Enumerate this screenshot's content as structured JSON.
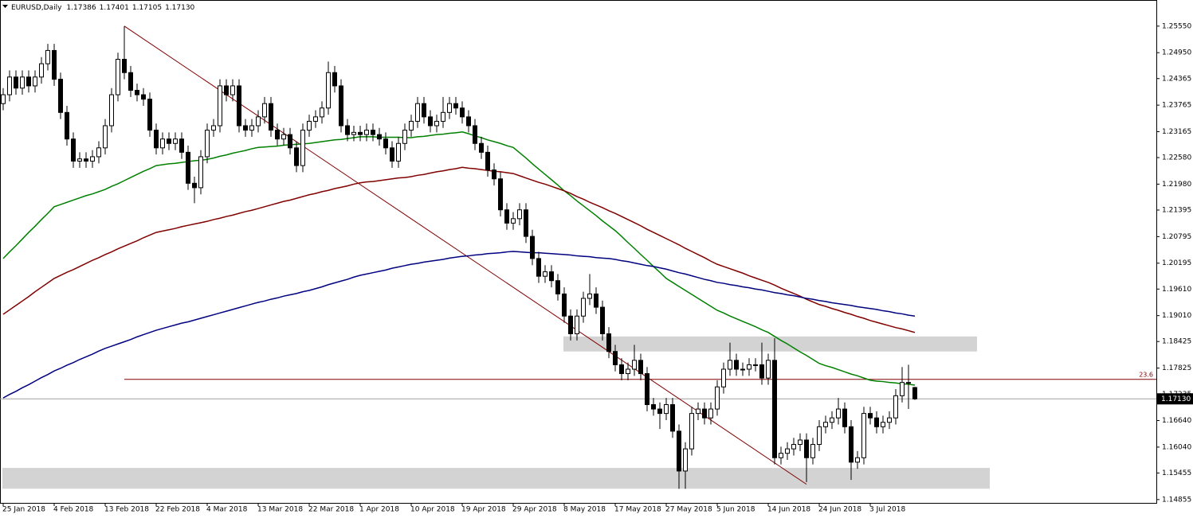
{
  "chart_data": {
    "type": "candlestick",
    "title": "EURUSD,Daily",
    "close_label": "1.17130",
    "categories": [
      "25 Jan 2018",
      null,
      null,
      null,
      null,
      null,
      null,
      null,
      "4 Feb 2018",
      null,
      null,
      null,
      null,
      null,
      null,
      null,
      "13 Feb 2018",
      null,
      null,
      null,
      null,
      null,
      null,
      null,
      "22 Feb 2018",
      null,
      null,
      null,
      null,
      null,
      null,
      null,
      "4 Mar 2018",
      null,
      null,
      null,
      null,
      null,
      null,
      null,
      "13 Mar 2018",
      null,
      null,
      null,
      null,
      null,
      null,
      null,
      "22 Mar 2018",
      null,
      null,
      null,
      null,
      null,
      null,
      null,
      "1 Apr 2018",
      null,
      null,
      null,
      null,
      null,
      null,
      null,
      "10 Apr 2018",
      null,
      null,
      null,
      null,
      null,
      null,
      null,
      "19 Apr 2018",
      null,
      null,
      null,
      null,
      null,
      null,
      null,
      "29 Apr 2018",
      null,
      null,
      null,
      null,
      null,
      null,
      null,
      "8 May 2018",
      null,
      null,
      null,
      null,
      null,
      null,
      null,
      "17 May 2018",
      null,
      null,
      null,
      null,
      null,
      null,
      null,
      "27 May 2018",
      null,
      null,
      null,
      null,
      null,
      null,
      null,
      "5 Jun 2018",
      null,
      null,
      null,
      null,
      null,
      null,
      null,
      "14 Jun 2018",
      null,
      null,
      null,
      null,
      null,
      null,
      null,
      "24 Jun 2018",
      null,
      null,
      null,
      null,
      null,
      null,
      null,
      "3 Jul 2018",
      null,
      null,
      null,
      null,
      null,
      null,
      null
    ],
    "open": [
      1.238,
      1.24,
      1.244,
      1.2415,
      1.244,
      1.242,
      1.244,
      1.247,
      1.25,
      1.2435,
      1.236,
      1.23,
      1.225,
      1.2255,
      1.225,
      1.226,
      1.228,
      1.233,
      1.24,
      1.248,
      1.245,
      1.241,
      1.24,
      1.239,
      1.232,
      1.228,
      1.23,
      1.229,
      1.23,
      1.227,
      1.22,
      1.219,
      1.226,
      1.232,
      1.233,
      1.242,
      1.24,
      1.242,
      1.233,
      1.232,
      1.233,
      1.235,
      1.238,
      1.232,
      1.23,
      1.231,
      1.228,
      1.224,
      1.232,
      1.234,
      1.235,
      1.237,
      1.245,
      1.242,
      1.233,
      1.231,
      1.2315,
      1.231,
      1.232,
      1.231,
      1.23,
      1.228,
      1.225,
      1.229,
      1.232,
      1.234,
      1.238,
      1.235,
      1.233,
      1.234,
      1.236,
      1.238,
      1.237,
      1.235,
      1.233,
      1.229,
      1.227,
      1.223,
      1.221,
      1.214,
      1.211,
      1.212,
      1.214,
      1.208,
      1.203,
      1.199,
      1.2,
      1.198,
      1.195,
      1.19,
      1.186,
      1.19,
      1.194,
      1.195,
      1.192,
      1.186,
      1.182,
      1.179,
      1.177,
      1.178,
      1.18,
      1.177,
      1.17,
      1.169,
      1.168,
      1.17,
      1.164,
      1.155,
      1.16,
      1.168,
      1.169,
      1.167,
      1.169,
      1.174,
      1.178,
      1.18,
      1.178,
      1.178,
      1.179,
      1.179,
      1.176,
      1.18,
      1.158,
      1.159,
      1.16,
      1.161,
      1.162,
      1.158,
      1.161,
      1.165,
      1.166,
      1.167,
      1.169,
      1.165,
      1.157,
      1.158,
      1.168,
      1.167,
      1.165,
      1.166,
      1.167,
      1.172,
      1.175,
      1.17386
    ],
    "high": [
      1.2415,
      1.2455,
      1.2455,
      1.2455,
      1.2455,
      1.2455,
      1.2485,
      1.2515,
      1.2515,
      1.245,
      1.2375,
      1.2315,
      1.227,
      1.227,
      1.2275,
      1.2295,
      1.2345,
      1.2415,
      1.2495,
      1.2555,
      1.2465,
      1.2425,
      1.2415,
      1.2405,
      1.2335,
      1.2315,
      1.2315,
      1.2315,
      1.2315,
      1.2285,
      1.2215,
      1.2275,
      1.2335,
      1.2345,
      1.2435,
      1.2435,
      1.2435,
      1.2435,
      1.2345,
      1.2345,
      1.2365,
      1.2395,
      1.2395,
      1.2335,
      1.2325,
      1.2325,
      1.2295,
      1.2335,
      1.2355,
      1.2365,
      1.2385,
      1.2475,
      1.2465,
      1.2435,
      1.2345,
      1.233,
      1.233,
      1.2335,
      1.2335,
      1.2325,
      1.2315,
      1.2295,
      1.2305,
      1.2335,
      1.2355,
      1.2395,
      1.2395,
      1.2365,
      1.2355,
      1.2395,
      1.2395,
      1.2395,
      1.2385,
      1.2365,
      1.2345,
      1.2305,
      1.2285,
      1.2245,
      1.2225,
      1.2155,
      1.2135,
      1.2155,
      1.2155,
      1.2095,
      1.2045,
      1.2015,
      1.2015,
      1.1995,
      1.1965,
      1.1915,
      1.1915,
      1.1955,
      1.1995,
      1.1965,
      1.1935,
      1.1875,
      1.1835,
      1.1805,
      1.1795,
      1.1835,
      1.1815,
      1.1785,
      1.1715,
      1.1705,
      1.1715,
      1.1715,
      1.1655,
      1.1615,
      1.1695,
      1.1705,
      1.1705,
      1.1705,
      1.1755,
      1.1795,
      1.184,
      1.1815,
      1.1795,
      1.1805,
      1.1805,
      1.184,
      1.1815,
      1.185,
      1.1605,
      1.1615,
      1.1625,
      1.1635,
      1.1635,
      1.1625,
      1.1665,
      1.1675,
      1.1685,
      1.1715,
      1.1705,
      1.1665,
      1.1595,
      1.1695,
      1.1695,
      1.1685,
      1.1675,
      1.1685,
      1.1735,
      1.1785,
      1.179,
      1.17401
    ],
    "low": [
      1.2365,
      1.2385,
      1.24,
      1.24,
      1.2405,
      1.2405,
      1.2425,
      1.2455,
      1.242,
      1.2345,
      1.2285,
      1.2235,
      1.2235,
      1.2235,
      1.2235,
      1.2245,
      1.2265,
      1.2315,
      1.2385,
      1.2435,
      1.2395,
      1.2385,
      1.2375,
      1.2305,
      1.2265,
      1.2265,
      1.2275,
      1.2275,
      1.2255,
      1.2185,
      1.2155,
      1.2175,
      1.2245,
      1.2305,
      1.2315,
      1.2385,
      1.2385,
      1.2315,
      1.2305,
      1.2305,
      1.2315,
      1.2335,
      1.2305,
      1.2285,
      1.2285,
      1.2265,
      1.2225,
      1.2225,
      1.2305,
      1.2325,
      1.2335,
      1.2355,
      1.2405,
      1.2315,
      1.2295,
      1.2295,
      1.2295,
      1.2295,
      1.2295,
      1.2285,
      1.2265,
      1.2235,
      1.2235,
      1.2275,
      1.2305,
      1.2325,
      1.2335,
      1.2315,
      1.2315,
      1.2325,
      1.2345,
      1.2355,
      1.2335,
      1.2315,
      1.2275,
      1.2255,
      1.2215,
      1.2195,
      1.2125,
      1.2095,
      1.2095,
      1.2105,
      1.2065,
      1.2015,
      1.1975,
      1.1975,
      1.1965,
      1.1935,
      1.1885,
      1.1845,
      1.1845,
      1.1885,
      1.1925,
      1.1905,
      1.1845,
      1.1805,
      1.1775,
      1.1755,
      1.1755,
      1.1765,
      1.1755,
      1.1685,
      1.1675,
      1.1645,
      1.1665,
      1.1625,
      1.151,
      1.151,
      1.1585,
      1.1665,
      1.1655,
      1.1655,
      1.1675,
      1.1725,
      1.1765,
      1.1765,
      1.1765,
      1.1765,
      1.1775,
      1.1745,
      1.1745,
      1.1565,
      1.1565,
      1.1575,
      1.1585,
      1.1595,
      1.1525,
      1.1565,
      1.1595,
      1.1635,
      1.1645,
      1.1655,
      1.1635,
      1.153,
      1.1555,
      1.1565,
      1.1655,
      1.1635,
      1.1635,
      1.1645,
      1.1655,
      1.1705,
      1.169,
      1.17105
    ],
    "close": [
      1.24,
      1.244,
      1.2415,
      1.244,
      1.242,
      1.244,
      1.247,
      1.25,
      1.2435,
      1.236,
      1.23,
      1.225,
      1.2255,
      1.225,
      1.226,
      1.228,
      1.233,
      1.24,
      1.248,
      1.245,
      1.241,
      1.24,
      1.239,
      1.232,
      1.228,
      1.23,
      1.229,
      1.23,
      1.227,
      1.22,
      1.219,
      1.226,
      1.232,
      1.233,
      1.242,
      1.24,
      1.242,
      1.233,
      1.232,
      1.233,
      1.235,
      1.238,
      1.232,
      1.23,
      1.231,
      1.228,
      1.224,
      1.232,
      1.234,
      1.235,
      1.237,
      1.245,
      1.242,
      1.233,
      1.231,
      1.2315,
      1.231,
      1.232,
      1.231,
      1.23,
      1.228,
      1.225,
      1.229,
      1.232,
      1.234,
      1.238,
      1.235,
      1.233,
      1.234,
      1.236,
      1.238,
      1.237,
      1.235,
      1.233,
      1.229,
      1.227,
      1.223,
      1.221,
      1.214,
      1.211,
      1.212,
      1.214,
      1.208,
      1.203,
      1.199,
      1.2,
      1.198,
      1.195,
      1.19,
      1.186,
      1.19,
      1.194,
      1.195,
      1.192,
      1.186,
      1.182,
      1.179,
      1.177,
      1.178,
      1.18,
      1.177,
      1.17,
      1.169,
      1.168,
      1.17,
      1.164,
      1.155,
      1.16,
      1.168,
      1.169,
      1.167,
      1.169,
      1.174,
      1.178,
      1.18,
      1.178,
      1.178,
      1.179,
      1.179,
      1.176,
      1.18,
      1.158,
      1.159,
      1.16,
      1.161,
      1.162,
      1.158,
      1.161,
      1.165,
      1.166,
      1.167,
      1.169,
      1.165,
      1.157,
      1.158,
      1.168,
      1.167,
      1.165,
      1.166,
      1.167,
      1.172,
      1.175,
      1.175,
      1.1713
    ],
    "ma": [
      {
        "color": "#008000",
        "values": [
          1.203,
          1.2045,
          1.2059,
          1.2074,
          1.2089,
          1.2103,
          1.2118,
          1.2132,
          1.2147,
          1.2152,
          1.2157,
          1.2162,
          1.2167,
          1.2172,
          1.2176,
          1.2181,
          1.2186,
          1.2193,
          1.2199,
          1.2206,
          1.2213,
          1.222,
          1.2227,
          1.2233,
          1.224,
          1.2242,
          1.2244,
          1.2245,
          1.2247,
          1.2249,
          1.2251,
          1.2252,
          1.2254,
          1.2257,
          1.2261,
          1.2264,
          1.2268,
          1.2271,
          1.2274,
          1.2278,
          1.2281,
          1.2282,
          1.2283,
          1.2284,
          1.2286,
          1.2287,
          1.2288,
          1.2289,
          1.229,
          1.2292,
          1.2294,
          1.2296,
          1.2298,
          1.2299,
          1.2301,
          1.2303,
          1.2305,
          1.2305,
          1.2305,
          1.2304,
          1.2304,
          1.2304,
          1.2304,
          1.2303,
          1.2303,
          1.2305,
          1.2306,
          1.2308,
          1.231,
          1.2311,
          1.2313,
          1.2314,
          1.2316,
          1.2312,
          1.2307,
          1.2303,
          1.2298,
          1.2294,
          1.229,
          1.2285,
          1.2281,
          1.2269,
          1.2257,
          1.2244,
          1.2232,
          1.222,
          1.2208,
          1.2196,
          1.2183,
          1.2172,
          1.216,
          1.2149,
          1.2138,
          1.2127,
          1.2115,
          1.2104,
          1.2093,
          1.208,
          1.2066,
          1.2053,
          1.2039,
          1.2026,
          1.2012,
          1.1999,
          1.1985,
          1.1976,
          1.1967,
          1.1958,
          1.1949,
          1.194,
          1.1931,
          1.1922,
          1.1913,
          1.1907,
          1.19,
          1.1894,
          1.1888,
          1.1882,
          1.1876,
          1.1869,
          1.1863,
          1.1854,
          1.1845,
          1.1837,
          1.1828,
          1.1819,
          1.1811,
          1.1802,
          1.1793,
          1.1788,
          1.1784,
          1.1779,
          1.1774,
          1.1769,
          1.1765,
          1.176,
          1.1755,
          1.1753,
          1.1752,
          1.175,
          1.1749,
          1.1747,
          1.1746,
          1.1744
        ]
      },
      {
        "color": "#800000",
        "values": [
          1.1904,
          1.1914,
          1.1924,
          1.1934,
          1.1944,
          1.1955,
          1.1965,
          1.1975,
          1.1985,
          1.1992,
          1.1999,
          1.2005,
          1.2012,
          1.2019,
          1.2026,
          1.2032,
          1.2039,
          1.2045,
          1.2052,
          1.2058,
          1.2064,
          1.207,
          1.2077,
          1.2083,
          1.2089,
          1.2092,
          1.2095,
          1.2098,
          1.2102,
          1.2105,
          1.2108,
          1.2111,
          1.2114,
          1.2118,
          1.2121,
          1.2125,
          1.2128,
          1.2132,
          1.2136,
          1.2139,
          1.2143,
          1.2147,
          1.2151,
          1.2155,
          1.2159,
          1.2162,
          1.2166,
          1.217,
          1.2174,
          1.2177,
          1.2181,
          1.2184,
          1.2188,
          1.2191,
          1.2194,
          1.2198,
          1.2201,
          1.2203,
          1.2204,
          1.2206,
          1.2208,
          1.221,
          1.2212,
          1.2213,
          1.2215,
          1.2218,
          1.222,
          1.2223,
          1.2226,
          1.2228,
          1.2231,
          1.2233,
          1.2236,
          1.2234,
          1.2233,
          1.2231,
          1.2229,
          1.2227,
          1.2226,
          1.2224,
          1.2222,
          1.2217,
          1.2212,
          1.2207,
          1.2202,
          1.2198,
          1.2193,
          1.2188,
          1.2183,
          1.2177,
          1.217,
          1.2164,
          1.2157,
          1.2151,
          1.2145,
          1.2138,
          1.2132,
          1.2125,
          1.2118,
          1.2111,
          1.2104,
          1.2096,
          1.2089,
          1.2082,
          1.2075,
          1.2068,
          1.2061,
          1.2053,
          1.2046,
          1.2039,
          1.2032,
          1.2024,
          1.2017,
          1.2012,
          1.2007,
          1.2002,
          1.1997,
          1.1991,
          1.1986,
          1.1981,
          1.1976,
          1.197,
          1.1963,
          1.1957,
          1.1951,
          1.1945,
          1.1938,
          1.1932,
          1.1926,
          1.1922,
          1.1917,
          1.1913,
          1.1908,
          1.1904,
          1.1899,
          1.1895,
          1.189,
          1.1886,
          1.1882,
          1.1878,
          1.1874,
          1.1871,
          1.1867,
          1.1863
        ]
      },
      {
        "color": "#000080",
        "values": [
          1.1715,
          1.1723,
          1.173,
          1.1738,
          1.1745,
          1.1753,
          1.1761,
          1.1768,
          1.1776,
          1.1782,
          1.1789,
          1.1795,
          1.1802,
          1.1808,
          1.1814,
          1.1821,
          1.1827,
          1.1832,
          1.1837,
          1.1842,
          1.1847,
          1.1853,
          1.1858,
          1.1863,
          1.1868,
          1.1872,
          1.1876,
          1.188,
          1.1884,
          1.1887,
          1.1891,
          1.1895,
          1.1899,
          1.1903,
          1.1907,
          1.1911,
          1.1915,
          1.1919,
          1.1923,
          1.1927,
          1.1931,
          1.1934,
          1.1938,
          1.1941,
          1.1945,
          1.1948,
          1.1951,
          1.1955,
          1.1958,
          1.1962,
          1.1966,
          1.1971,
          1.1975,
          1.1979,
          1.1983,
          1.1988,
          1.1992,
          1.1995,
          1.1998,
          1.2001,
          1.2004,
          1.2008,
          1.2011,
          1.2014,
          1.2017,
          1.2019,
          1.2022,
          1.2024,
          1.2026,
          1.2028,
          1.2031,
          1.2033,
          1.2035,
          1.2036,
          1.2038,
          1.2039,
          1.2041,
          1.2042,
          1.2043,
          1.2045,
          1.2046,
          1.2045,
          1.2044,
          1.2043,
          1.2043,
          1.2042,
          1.2041,
          1.204,
          1.2039,
          1.2038,
          1.2036,
          1.2035,
          1.2034,
          1.2032,
          1.2031,
          1.203,
          1.2028,
          1.2025,
          1.2023,
          1.202,
          1.2017,
          1.2014,
          1.2012,
          1.2009,
          1.2006,
          1.2002,
          1.1998,
          1.1995,
          1.1991,
          1.1987,
          1.1983,
          1.198,
          1.1976,
          1.1974,
          1.1971,
          1.1969,
          1.1966,
          1.1964,
          1.1961,
          1.1959,
          1.1956,
          1.1953,
          1.1951,
          1.1948,
          1.1946,
          1.1943,
          1.194,
          1.1938,
          1.1935,
          1.1933,
          1.193,
          1.1928,
          1.1926,
          1.1924,
          1.1921,
          1.1919,
          1.1917,
          1.1915,
          1.1912,
          1.191,
          1.1907,
          1.1905,
          1.1902,
          1.19
        ]
      }
    ],
    "trendline": {
      "values": [
        1.2555,
        1.152
      ],
      "color": "#800000"
    },
    "fib_level": {
      "label": "23.6",
      "value": 1.1757,
      "color": "#800000"
    },
    "zones": [
      {
        "top": 1.1854,
        "bottom": 1.182,
        "color": "#d3d3d3"
      },
      {
        "top": 1.1557,
        "bottom": 1.151,
        "color": "#d3d3d3"
      }
    ],
    "ylim": [
      1.1478,
      1.2614
    ],
    "yticks": [
      {
        "value": 1.2555,
        "label": "1.25550"
      },
      {
        "value": 1.2495,
        "label": "1.24950"
      },
      1.24365,
      1.23765,
      1.23165,
      {
        "value": 1.2258,
        "label": "1.22580"
      },
      {
        "value": 1.2198,
        "label": "1.21980"
      },
      1.21395,
      1.20795,
      1.20195,
      {
        "value": 1.1961,
        "label": "1.19610"
      },
      {
        "value": 1.1901,
        "label": "1.19010"
      },
      1.18425,
      1.17825,
      1.17235,
      {
        "value": 1.1664,
        "label": "1.16640"
      },
      {
        "value": 1.1604,
        "label": "1.16040"
      },
      1.15455,
      1.14855
    ]
  }
}
